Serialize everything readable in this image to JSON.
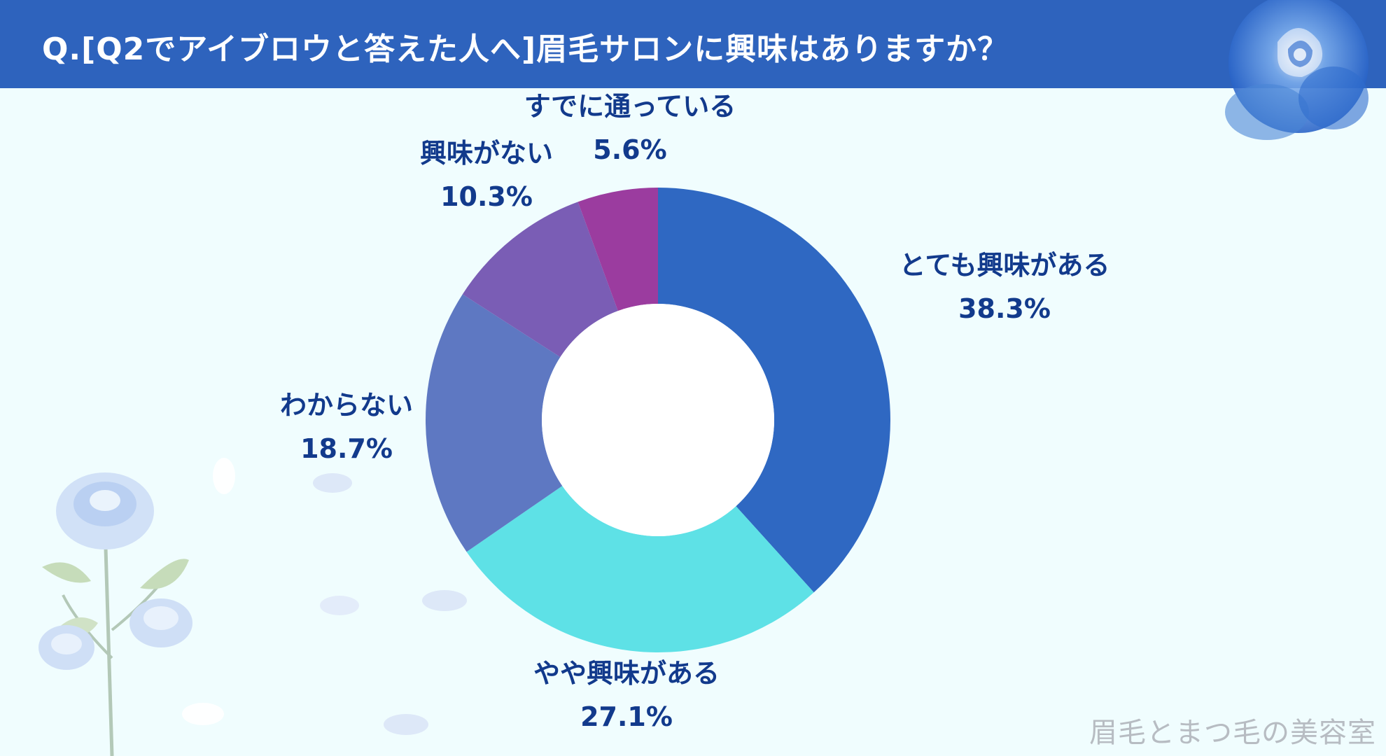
{
  "header": {
    "title": "Q.[Q2でアイブロウと答えた人へ]眉毛サロンに興味はありますか？"
  },
  "chart_data": {
    "type": "pie",
    "style": "donut",
    "categories": [
      "とても興味がある",
      "やや興味がある",
      "わからない",
      "興味がない",
      "すでに通っている"
    ],
    "values": [
      38.3,
      27.1,
      18.7,
      10.3,
      5.6
    ],
    "value_labels": [
      "38.3%",
      "27.1%",
      "18.7%",
      "10.3%",
      "5.6%"
    ],
    "colors": [
      "#2f68c2",
      "#5ee1e6",
      "#5e78c2",
      "#7a5db5",
      "#9b3c9f"
    ],
    "legend": "none"
  },
  "footer": {
    "watermark": "眉毛とまつ毛の美容室"
  },
  "colors": {
    "header_bg": "#2e63bd",
    "page_bg": "#f0fdfe",
    "label_text": "#123a8c"
  },
  "icons": {
    "top_right": "blue-rose-icon",
    "bottom_left": "blue-rose-bouquet-icon"
  }
}
